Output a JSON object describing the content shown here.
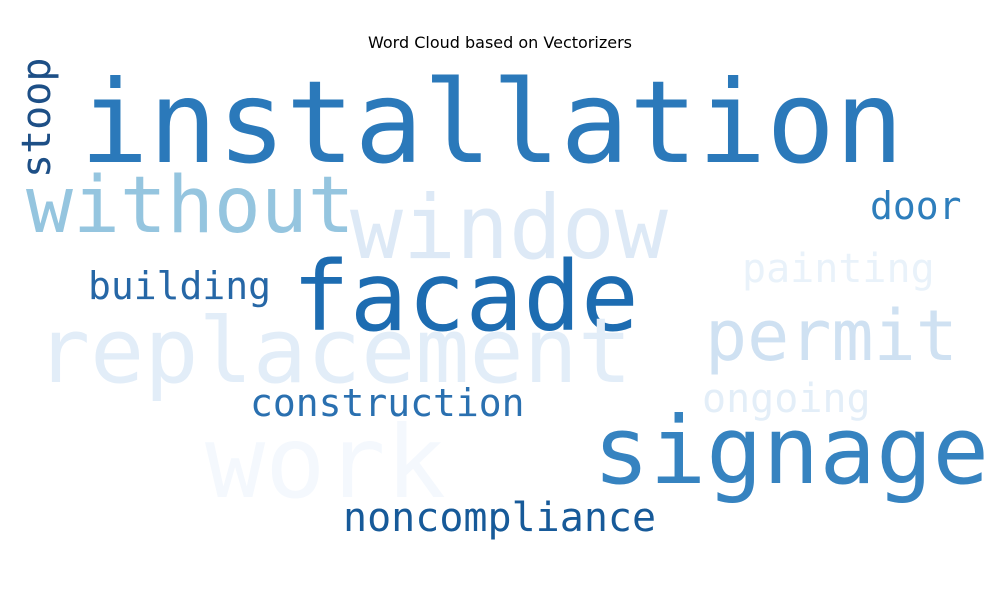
{
  "chart_data": {
    "type": "wordcloud",
    "title": "Word Cloud based on Vectorizers",
    "colormap": "Blues",
    "words": [
      {
        "text": "installation",
        "color": "#2b79ba"
      },
      {
        "text": "without",
        "color": "#95c5df"
      },
      {
        "text": "window",
        "color": "#dde9f6"
      },
      {
        "text": "stoop",
        "color": "#1d4f86"
      },
      {
        "text": "door",
        "color": "#2e7ebc"
      },
      {
        "text": "painting",
        "color": "#e9f2fa"
      },
      {
        "text": "building",
        "color": "#2667a6"
      },
      {
        "text": "facade",
        "color": "#1d6cb1"
      },
      {
        "text": "replacement",
        "color": "#e2edf8"
      },
      {
        "text": "permit",
        "color": "#cfe1f2"
      },
      {
        "text": "ongoing",
        "color": "#e3eef8"
      },
      {
        "text": "construction",
        "color": "#2a70b0"
      },
      {
        "text": "signage",
        "color": "#3683c0"
      },
      {
        "text": "work",
        "color": "#f4f8fd"
      },
      {
        "text": "noncompliance",
        "color": "#175a99"
      }
    ]
  }
}
